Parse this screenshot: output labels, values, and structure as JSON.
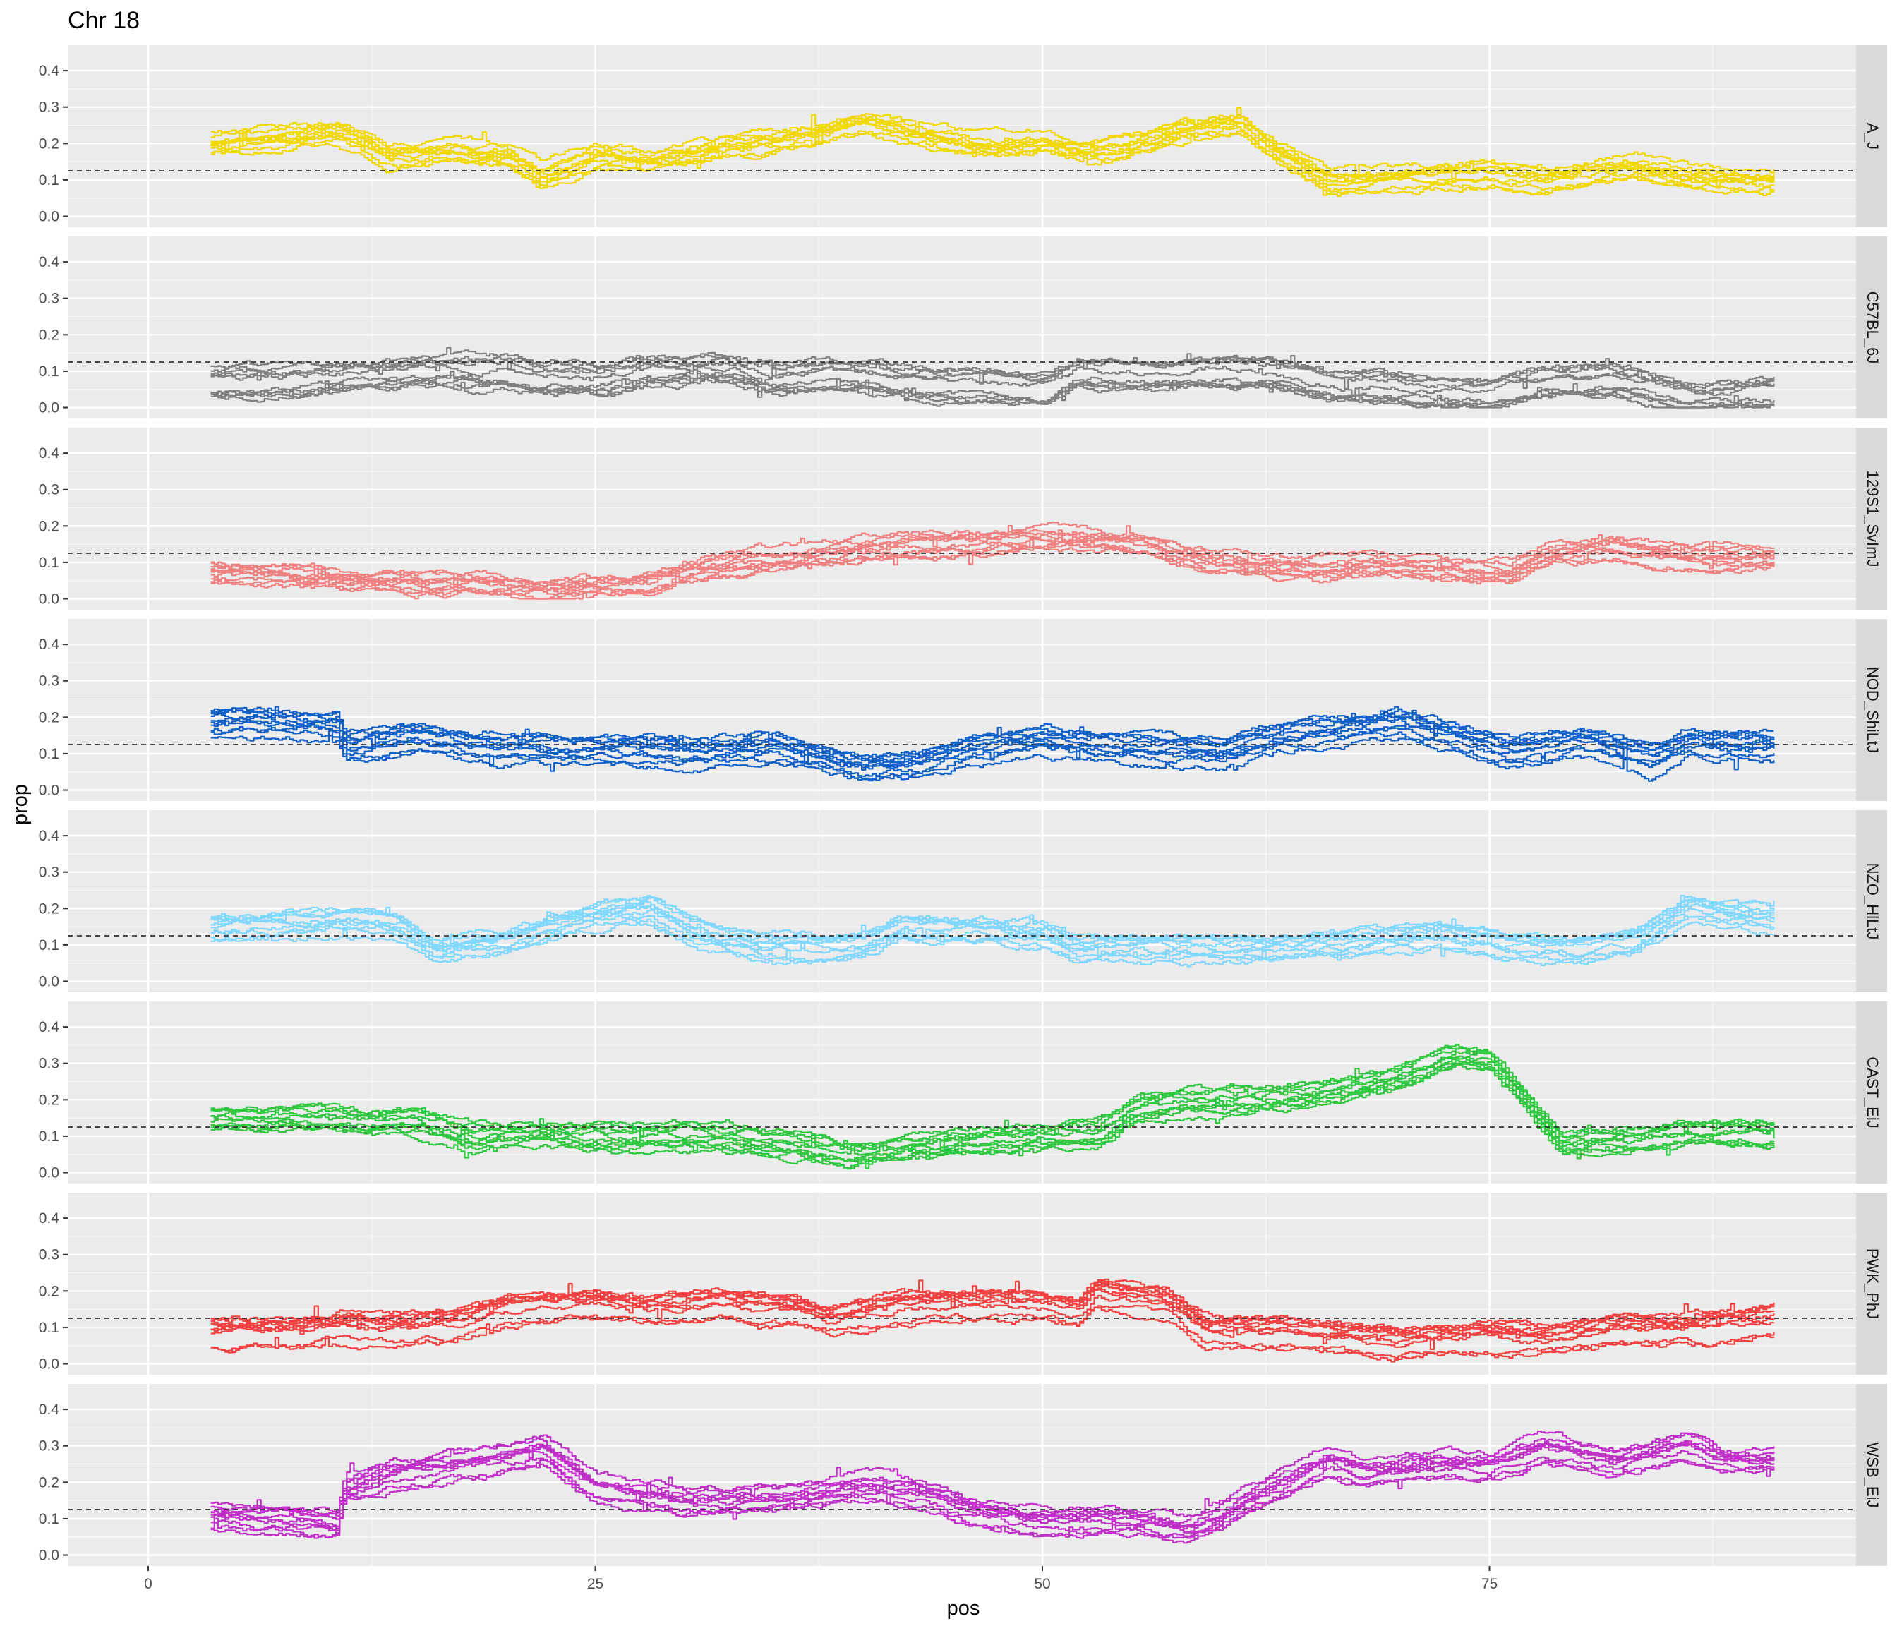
{
  "chart_data": {
    "type": "line",
    "title": "Chr 18",
    "xlabel": "pos",
    "ylabel": "prop",
    "xlim": [
      -4.5,
      95.5
    ],
    "ylim": [
      -0.03,
      0.47
    ],
    "x_ticks": [
      0,
      25,
      50,
      75
    ],
    "x_minor": [
      12.5,
      37.5,
      62.5,
      87.5
    ],
    "y_ticks": [
      0.0,
      0.1,
      0.2,
      0.3,
      0.4
    ],
    "y_tick_labels": [
      "0.0",
      "0.1",
      "0.2",
      "0.3",
      "0.4"
    ],
    "reference_line": {
      "y": 0.125,
      "style": "dashed",
      "color": "#333333"
    },
    "grid": true,
    "lines_per_panel": 10,
    "panels": [
      {
        "strain": "A_J",
        "color": "#F0D800",
        "x": [
          3.5,
          8,
          10.5,
          13.5,
          17,
          20,
          22,
          25,
          28,
          32,
          35,
          40,
          43,
          47,
          50,
          53,
          56,
          58,
          61,
          63,
          66,
          70,
          75,
          78,
          83,
          86,
          91
        ],
        "y": [
          0.19,
          0.21,
          0.23,
          0.16,
          0.17,
          0.16,
          0.1,
          0.16,
          0.14,
          0.18,
          0.2,
          0.25,
          0.21,
          0.18,
          0.19,
          0.17,
          0.2,
          0.23,
          0.25,
          0.17,
          0.09,
          0.1,
          0.11,
          0.09,
          0.13,
          0.1,
          0.09
        ]
      },
      {
        "strain": "C57BL_6J",
        "color": "#808080",
        "x": [
          3.5,
          8,
          10.5,
          14,
          17,
          20,
          22,
          25,
          28,
          32,
          35,
          38,
          42,
          47,
          50,
          52,
          56,
          60,
          63,
          66,
          70,
          75,
          78,
          82,
          86,
          88,
          91
        ],
        "y": [
          0.07,
          0.07,
          0.08,
          0.09,
          0.1,
          0.1,
          0.08,
          0.08,
          0.1,
          0.11,
          0.08,
          0.09,
          0.07,
          0.06,
          0.05,
          0.1,
          0.09,
          0.1,
          0.09,
          0.06,
          0.05,
          0.04,
          0.07,
          0.08,
          0.03,
          0.03,
          0.04
        ]
      },
      {
        "strain": "129S1_SvImJ",
        "color": "#F08080",
        "x": [
          3.5,
          8,
          10.5,
          14,
          18,
          20,
          22,
          25,
          28,
          30,
          34,
          38,
          42,
          46,
          50,
          52,
          56,
          60,
          64,
          68,
          72,
          76,
          78,
          82,
          86,
          91
        ],
        "y": [
          0.08,
          0.07,
          0.06,
          0.05,
          0.05,
          0.04,
          0.03,
          0.04,
          0.05,
          0.08,
          0.11,
          0.13,
          0.15,
          0.16,
          0.17,
          0.17,
          0.15,
          0.11,
          0.09,
          0.1,
          0.09,
          0.08,
          0.13,
          0.15,
          0.12,
          0.12
        ]
      },
      {
        "strain": "NOD_ShiLtJ",
        "color": "#1060C8",
        "x": [
          3.5,
          8,
          10.5,
          11,
          15,
          18,
          22,
          25,
          30,
          35,
          38,
          40,
          43,
          46,
          50,
          52,
          56,
          60,
          62,
          64,
          66,
          70,
          73,
          76,
          80,
          84,
          86,
          91
        ],
        "y": [
          0.18,
          0.18,
          0.17,
          0.11,
          0.14,
          0.12,
          0.11,
          0.11,
          0.1,
          0.11,
          0.08,
          0.06,
          0.07,
          0.11,
          0.13,
          0.12,
          0.11,
          0.1,
          0.13,
          0.15,
          0.16,
          0.18,
          0.14,
          0.1,
          0.13,
          0.08,
          0.13,
          0.12
        ]
      },
      {
        "strain": "NZO_HlLtJ",
        "color": "#80D8FF",
        "x": [
          3.5,
          8,
          11,
          14,
          16,
          20,
          24,
          28,
          31,
          34,
          38,
          40,
          42,
          46,
          50,
          52,
          56,
          60,
          64,
          68,
          72,
          76,
          80,
          83,
          86,
          91
        ],
        "y": [
          0.14,
          0.15,
          0.16,
          0.14,
          0.07,
          0.1,
          0.16,
          0.19,
          0.12,
          0.09,
          0.08,
          0.09,
          0.14,
          0.13,
          0.12,
          0.08,
          0.08,
          0.08,
          0.08,
          0.1,
          0.12,
          0.09,
          0.08,
          0.1,
          0.19,
          0.16
        ]
      },
      {
        "strain": "CAST_EiJ",
        "color": "#30C840",
        "x": [
          3.5,
          8,
          12,
          15,
          18,
          22,
          26,
          30,
          36,
          39,
          42,
          46,
          50,
          53,
          55,
          58,
          62,
          66,
          70,
          73,
          75,
          77,
          79,
          82,
          86,
          91
        ],
        "y": [
          0.15,
          0.15,
          0.14,
          0.14,
          0.1,
          0.11,
          0.09,
          0.1,
          0.08,
          0.05,
          0.07,
          0.09,
          0.1,
          0.11,
          0.17,
          0.19,
          0.2,
          0.22,
          0.26,
          0.32,
          0.31,
          0.2,
          0.08,
          0.09,
          0.11,
          0.11
        ]
      },
      {
        "strain": "PWK_PhJ",
        "color": "#F04040",
        "x": [
          3.5,
          8,
          11,
          14,
          17,
          20,
          22,
          25,
          28,
          32,
          36,
          38,
          42,
          46,
          49,
          52,
          53,
          57,
          59,
          62,
          66,
          70,
          75,
          78,
          82,
          86,
          91
        ],
        "y": [
          0.08,
          0.08,
          0.1,
          0.09,
          0.1,
          0.14,
          0.15,
          0.16,
          0.14,
          0.16,
          0.14,
          0.11,
          0.15,
          0.16,
          0.16,
          0.14,
          0.19,
          0.16,
          0.09,
          0.08,
          0.07,
          0.05,
          0.07,
          0.06,
          0.09,
          0.09,
          0.12
        ]
      },
      {
        "strain": "WSB_EiJ",
        "color": "#C030C8",
        "x": [
          3.5,
          8,
          10.5,
          11,
          14,
          18,
          22,
          25,
          30,
          35,
          40,
          43,
          46,
          50,
          52,
          56,
          58,
          60,
          61,
          64,
          66,
          68,
          72,
          75,
          78,
          82,
          86,
          88,
          91
        ],
        "y": [
          0.1,
          0.09,
          0.08,
          0.18,
          0.22,
          0.24,
          0.28,
          0.18,
          0.14,
          0.14,
          0.18,
          0.17,
          0.11,
          0.09,
          0.09,
          0.08,
          0.06,
          0.1,
          0.13,
          0.2,
          0.25,
          0.22,
          0.24,
          0.24,
          0.29,
          0.25,
          0.29,
          0.25,
          0.25
        ]
      }
    ]
  }
}
